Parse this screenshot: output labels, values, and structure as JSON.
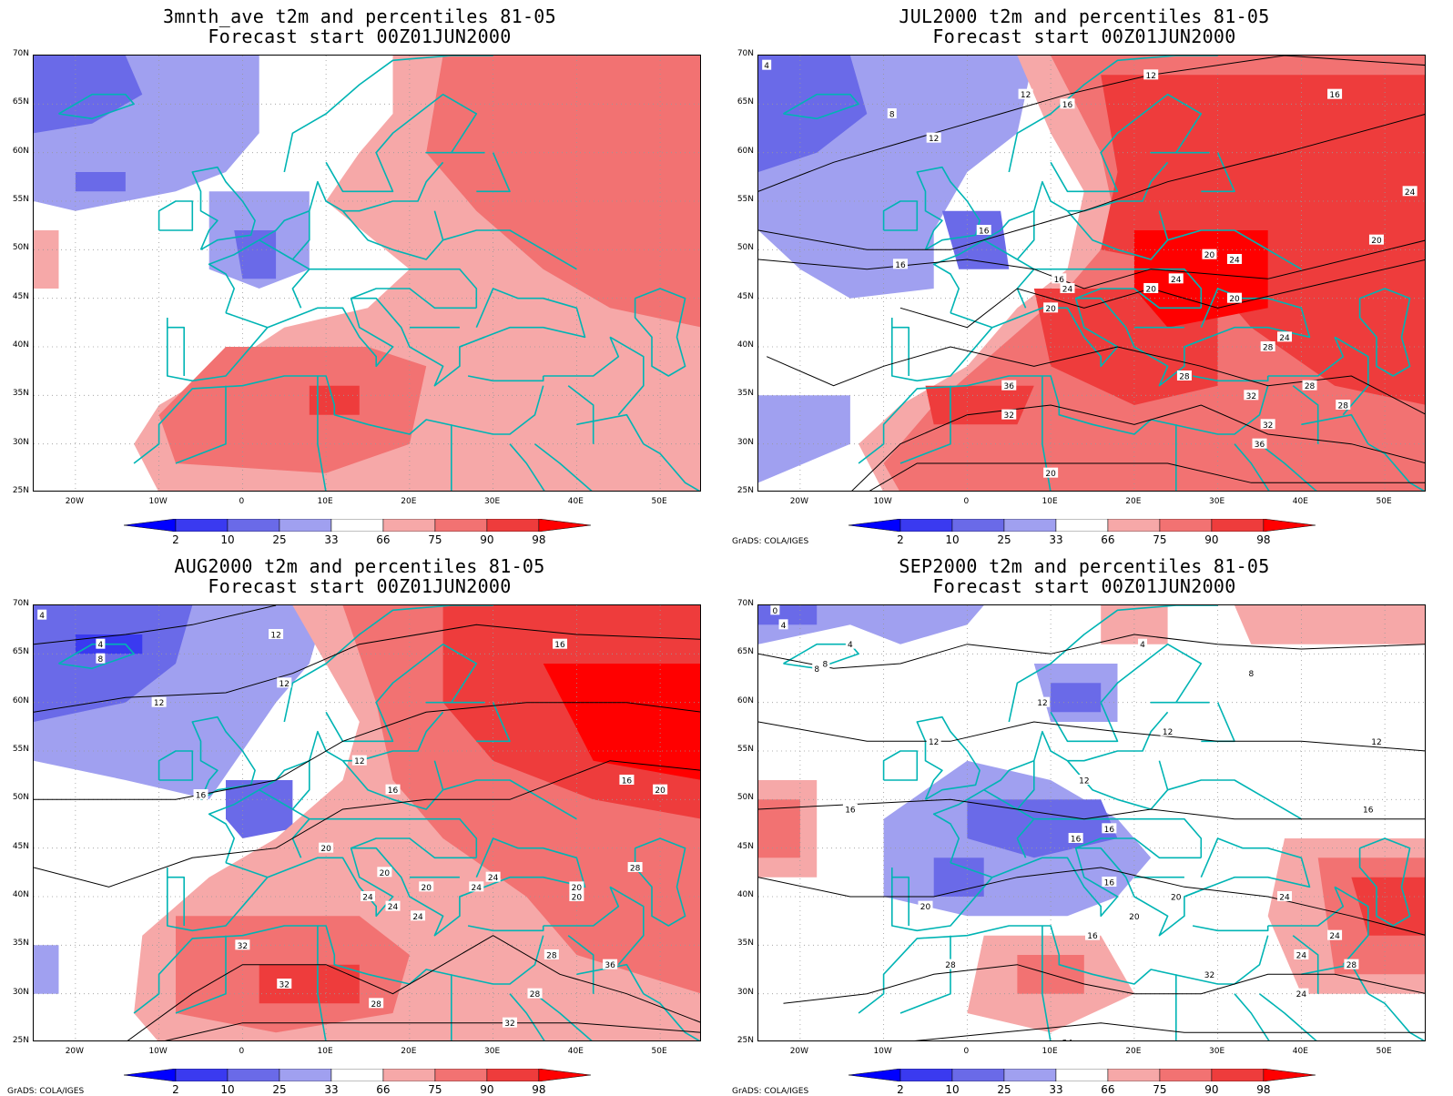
{
  "panels": [
    {
      "title": "3mnth_ave t2m and percentiles 81-05",
      "subtitle": "Forecast start 00Z01JUN2000",
      "credit": "",
      "contour_labels": []
    },
    {
      "title": "JUL2000 t2m and percentiles 81-05",
      "subtitle": "Forecast start 00Z01JUN2000",
      "credit": "GrADS: COLA/IGES",
      "contour_labels": [
        "4",
        "8",
        "12",
        "12",
        "16",
        "12",
        "16",
        "16",
        "16",
        "16",
        "20",
        "20",
        "24",
        "20",
        "24",
        "24",
        "20",
        "20",
        "24",
        "28",
        "32",
        "24",
        "36",
        "28",
        "32",
        "28",
        "32",
        "20",
        "36",
        "28"
      ]
    },
    {
      "title": "AUG2000 t2m and percentiles 81-05",
      "subtitle": "Forecast start 00Z01JUN2000",
      "credit": "GrADS: COLA/IGES",
      "contour_labels": [
        "4",
        "4",
        "8",
        "12",
        "12",
        "12",
        "16",
        "12",
        "16",
        "16",
        "16",
        "20",
        "20",
        "24",
        "20",
        "20",
        "24",
        "24",
        "20",
        "20",
        "28",
        "28",
        "24",
        "32",
        "24",
        "36",
        "28",
        "32",
        "28",
        "32"
      ]
    },
    {
      "title": "SEP2000 t2m and percentiles 81-05",
      "subtitle": "Forecast start 00Z01JUN2000",
      "credit": "GrADS: COLA/IGES",
      "contour_labels": [
        "0",
        "4",
        "4",
        "8",
        "4",
        "8",
        "8",
        "12",
        "12",
        "12",
        "12",
        "16",
        "12",
        "16",
        "16",
        "16",
        "16",
        "20",
        "20",
        "16",
        "24",
        "24",
        "24",
        "20",
        "28",
        "28",
        "24",
        "32",
        "24",
        "24"
      ]
    }
  ],
  "lat_labels": [
    "70N",
    "65N",
    "60N",
    "55N",
    "50N",
    "45N",
    "40N",
    "35N",
    "30N",
    "25N"
  ],
  "lon_labels": [
    "20W",
    "10W",
    "0",
    "10E",
    "20E",
    "30E",
    "40E",
    "50E"
  ],
  "colorbar": {
    "labels": [
      "2",
      "10",
      "25",
      "33",
      "66",
      "75",
      "90",
      "98"
    ],
    "colors": [
      "#0000ff",
      "#3a3af0",
      "#6a6ae8",
      "#a0a0f0",
      "#ffffff",
      "#f6a8a8",
      "#f27272",
      "#ee3c3c",
      "#ff0000"
    ]
  },
  "colors": {
    "coastline": "#00b4b4",
    "contour": "#000000",
    "grid": "#999999"
  }
}
